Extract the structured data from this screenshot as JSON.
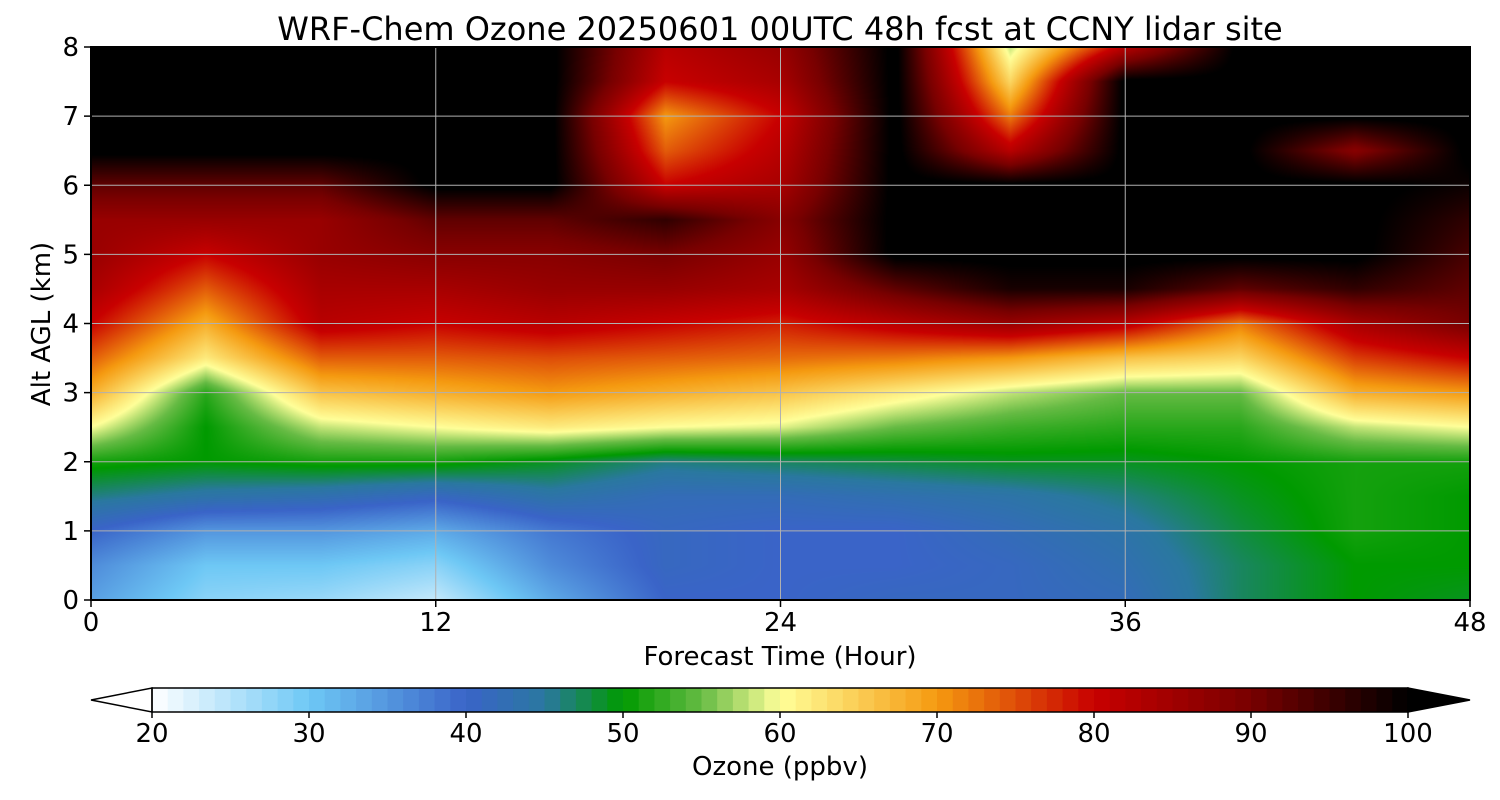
{
  "chart_data": {
    "type": "heatmap",
    "title": "WRF-Chem Ozone  20250601 00UTC 48h fcst at CCNY lidar site",
    "xlabel": "Forecast Time (Hour)",
    "ylabel": "Alt AGL (km)",
    "xlim": [
      0,
      48
    ],
    "ylim": [
      0,
      8
    ],
    "x_ticks": [
      0,
      12,
      24,
      36,
      48
    ],
    "y_ticks": [
      0,
      1,
      2,
      3,
      4,
      5,
      6,
      7,
      8
    ],
    "grid": true,
    "x": [
      0,
      4,
      8,
      12,
      16,
      20,
      24,
      28,
      32,
      36,
      40,
      44,
      48
    ],
    "y": [
      0,
      0.5,
      1,
      1.5,
      2,
      2.5,
      3,
      3.5,
      4,
      4.5,
      5,
      5.5,
      6,
      6.5,
      7,
      7.5,
      8
    ],
    "z": [
      [
        34,
        28,
        27,
        24,
        33,
        40,
        40,
        41,
        41,
        42,
        47,
        50,
        49
      ],
      [
        36,
        30,
        30,
        28,
        36,
        41,
        40,
        40,
        41,
        43,
        47,
        50,
        50
      ],
      [
        40,
        35,
        35,
        33,
        38,
        41,
        40,
        40,
        42,
        44,
        48,
        51,
        50
      ],
      [
        46,
        44,
        43,
        41,
        44,
        42,
        42,
        43,
        44,
        46,
        49,
        51,
        50
      ],
      [
        51,
        50,
        51,
        51,
        49,
        46,
        47,
        48,
        49,
        49,
        50,
        51,
        51
      ],
      [
        60,
        50,
        58,
        60,
        62,
        60,
        59,
        55,
        53,
        52,
        52,
        58,
        60
      ],
      [
        68,
        52,
        66,
        68,
        70,
        68,
        66,
        62,
        58,
        55,
        55,
        68,
        70
      ],
      [
        74,
        62,
        74,
        74,
        75,
        74,
        73,
        72,
        70,
        66,
        64,
        76,
        80
      ],
      [
        80,
        68,
        82,
        80,
        82,
        80,
        78,
        82,
        86,
        82,
        72,
        84,
        90
      ],
      [
        84,
        74,
        84,
        84,
        86,
        86,
        84,
        92,
        98,
        98,
        92,
        96,
        92
      ],
      [
        86,
        80,
        86,
        88,
        88,
        90,
        86,
        101,
        101,
        101,
        101,
        101,
        94
      ],
      [
        86,
        86,
        86,
        92,
        92,
        96,
        88,
        101,
        101,
        101,
        101,
        101,
        96
      ],
      [
        92,
        92,
        92,
        101,
        101,
        80,
        84,
        101,
        101,
        101,
        101,
        101,
        99
      ],
      [
        101,
        101,
        101,
        101,
        101,
        74,
        82,
        101,
        82,
        101,
        101,
        88,
        101
      ],
      [
        101,
        101,
        101,
        101,
        101,
        70,
        80,
        101,
        72,
        101,
        101,
        101,
        101
      ],
      [
        101,
        101,
        101,
        101,
        101,
        80,
        84,
        101,
        64,
        101,
        101,
        101,
        101
      ],
      [
        101,
        101,
        101,
        101,
        101,
        82,
        86,
        101,
        58,
        82,
        101,
        101,
        101
      ]
    ],
    "colorbar": {
      "label": "Ozone  (ppbv)",
      "min": 20,
      "max": 100,
      "ticks": [
        20,
        30,
        40,
        50,
        60,
        70,
        80,
        90,
        100
      ],
      "extend": "both",
      "stops": [
        {
          "v": 20,
          "c": "#ffffff"
        },
        {
          "v": 30,
          "c": "#6ec8f5"
        },
        {
          "v": 40,
          "c": "#3a64c8"
        },
        {
          "v": 45,
          "c": "#2a78a0"
        },
        {
          "v": 50,
          "c": "#009a00"
        },
        {
          "v": 55,
          "c": "#66bb44"
        },
        {
          "v": 60,
          "c": "#ffff99"
        },
        {
          "v": 70,
          "c": "#f59a10"
        },
        {
          "v": 80,
          "c": "#c80000"
        },
        {
          "v": 90,
          "c": "#780000"
        },
        {
          "v": 100,
          "c": "#000000"
        }
      ]
    }
  }
}
